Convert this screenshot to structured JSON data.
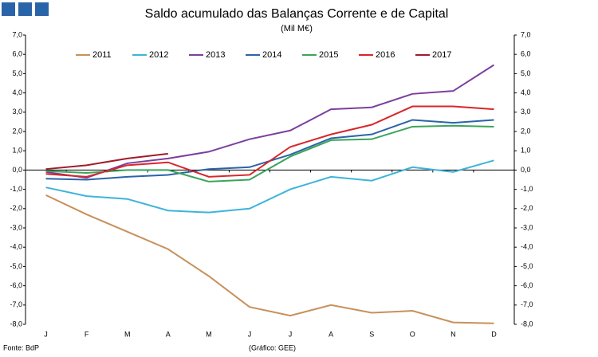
{
  "chart_data": {
    "type": "line",
    "title": "Saldo acumulado das Balanças Corrente e de Capital",
    "subtitle": "(Mil M€)",
    "source": "Fonte: BdP",
    "credit": "(Gráfico: GEE)",
    "categories": [
      "J",
      "F",
      "M",
      "A",
      "M",
      "J",
      "J",
      "A",
      "S",
      "O",
      "N",
      "D"
    ],
    "ylim": [
      -8,
      7
    ],
    "yticks": [
      {
        "value": 7,
        "label": "7,0"
      },
      {
        "value": 6,
        "label": "6,0"
      },
      {
        "value": 5,
        "label": "5,0"
      },
      {
        "value": 4,
        "label": "4,0"
      },
      {
        "value": 3,
        "label": "3,0"
      },
      {
        "value": 2,
        "label": "2,0"
      },
      {
        "value": 1,
        "label": "1,0"
      },
      {
        "value": 0,
        "label": "0,0"
      },
      {
        "value": -1,
        "label": "-1,0"
      },
      {
        "value": -2,
        "label": "-2,0"
      },
      {
        "value": -3,
        "label": "-3,0"
      },
      {
        "value": -4,
        "label": "-4,0"
      },
      {
        "value": -5,
        "label": "-5,0"
      },
      {
        "value": -6,
        "label": "-6,0"
      },
      {
        "value": -7,
        "label": "-7,0"
      },
      {
        "value": -8,
        "label": "-8,0"
      }
    ],
    "legend": "top",
    "series": [
      {
        "name": "2011",
        "color": "#c8905a",
        "values": [
          -1.3,
          -2.3,
          -3.2,
          -4.1,
          -5.5,
          -7.1,
          -7.55,
          -7.0,
          -7.4,
          -7.3,
          -7.9,
          -7.95
        ]
      },
      {
        "name": "2012",
        "color": "#3eb4d8",
        "values": [
          -0.9,
          -1.35,
          -1.5,
          -2.1,
          -2.2,
          -2.0,
          -1.0,
          -0.35,
          -0.55,
          0.15,
          -0.1,
          0.5
        ]
      },
      {
        "name": "2013",
        "color": "#7b3f9e",
        "values": [
          -0.1,
          -0.4,
          0.35,
          0.6,
          0.95,
          1.6,
          2.05,
          3.15,
          3.25,
          3.95,
          4.1,
          5.45
        ]
      },
      {
        "name": "2014",
        "color": "#2a64a8",
        "values": [
          -0.45,
          -0.5,
          -0.35,
          -0.25,
          0.05,
          0.15,
          0.8,
          1.65,
          1.85,
          2.6,
          2.45,
          2.6
        ]
      },
      {
        "name": "2015",
        "color": "#3aa55a",
        "values": [
          -0.05,
          -0.15,
          0.0,
          0.0,
          -0.6,
          -0.5,
          0.7,
          1.55,
          1.6,
          2.25,
          2.3,
          2.25
        ]
      },
      {
        "name": "2016",
        "color": "#d8262a",
        "values": [
          -0.2,
          -0.35,
          0.25,
          0.4,
          -0.35,
          -0.25,
          1.2,
          1.85,
          2.35,
          3.3,
          3.3,
          3.15
        ]
      },
      {
        "name": "2017",
        "color": "#a01c2a",
        "values": [
          0.05,
          0.25,
          0.6,
          0.85,
          null,
          null,
          null,
          null,
          null,
          null,
          null,
          null
        ]
      }
    ]
  }
}
